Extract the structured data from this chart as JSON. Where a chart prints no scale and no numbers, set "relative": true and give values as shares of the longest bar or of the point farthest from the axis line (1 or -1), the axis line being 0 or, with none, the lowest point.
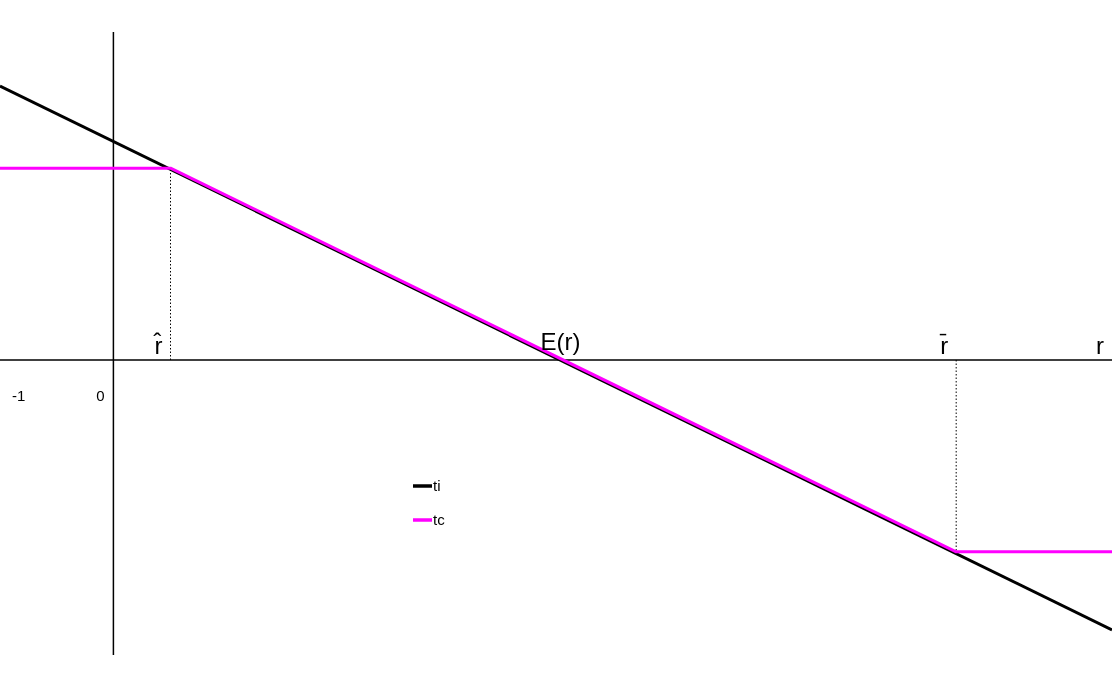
{
  "chart_data": {
    "type": "line",
    "relative": true,
    "xlabel": "r",
    "xlim": [
      -1.23,
      12.4
    ],
    "xticks": [
      -1,
      0
    ],
    "legend": "bottom left",
    "marker": "none",
    "line_style": "solid",
    "series": [
      {
        "name": "ti",
        "color": "#000000",
        "x": [
          -1.23,
          12.4
        ],
        "values": [
          1,
          -0.985
        ]
      },
      {
        "name": "tc",
        "color": "#ff00ff",
        "x": [
          -1.23,
          0.86,
          10.49,
          12.4
        ],
        "values": [
          0.7,
          0.7,
          -0.7,
          -0.7
        ]
      }
    ],
    "ref_lines": [
      {
        "axis": "x",
        "value": 0.16,
        "line_style": "solid",
        "color": "#000000"
      },
      {
        "axis": "x",
        "value": 0.86,
        "label": "r̂",
        "line_style": "dotted",
        "color": "#000000"
      },
      {
        "axis": "x",
        "value": 10.49,
        "label": "r̄",
        "line_style": "dotted",
        "color": "#000000"
      }
    ],
    "annotations": [
      {
        "text": "E(r)",
        "x": 5.64,
        "y": 0
      }
    ]
  }
}
